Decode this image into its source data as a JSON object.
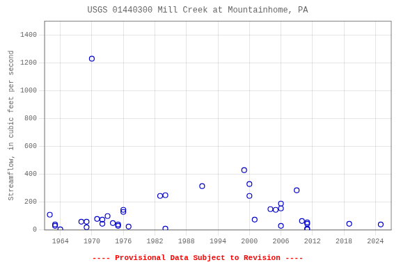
{
  "chart_data": {
    "type": "scatter",
    "title": "USGS 01440300 Mill Creek at Mountainhome, PA",
    "ylabel": "Streamflow, in cubic feet per second",
    "annotation": "---- Provisional Data Subject to Revision ----",
    "x": [
      1962,
      1963,
      1963,
      1964,
      1968,
      1969,
      1969,
      1970,
      1971,
      1972,
      1972,
      1973,
      1974,
      1975,
      1975,
      1976,
      1976,
      1977,
      1983,
      1984,
      1984,
      1991,
      1999,
      2000,
      2000,
      2001,
      2004,
      2005,
      2006,
      2006,
      2006,
      2009,
      2010,
      2011,
      2011,
      2011,
      2011,
      2019,
      2025
    ],
    "values": [
      110,
      40,
      30,
      5,
      60,
      60,
      20,
      1230,
      80,
      75,
      45,
      100,
      50,
      40,
      30,
      145,
      130,
      25,
      245,
      250,
      10,
      315,
      430,
      330,
      245,
      75,
      150,
      145,
      190,
      155,
      30,
      285,
      65,
      45,
      55,
      10,
      5,
      45,
      40
    ],
    "xlim": [
      1961,
      2027
    ],
    "ylim": [
      0,
      1500
    ],
    "xticks": [
      1964,
      1970,
      1976,
      1982,
      1988,
      1994,
      2000,
      2006,
      2012,
      2018,
      2024
    ],
    "yticks": [
      0,
      200,
      400,
      600,
      800,
      1000,
      1200,
      1400
    ],
    "color": "#0000CC",
    "marker": "open_circle",
    "grid": true
  }
}
